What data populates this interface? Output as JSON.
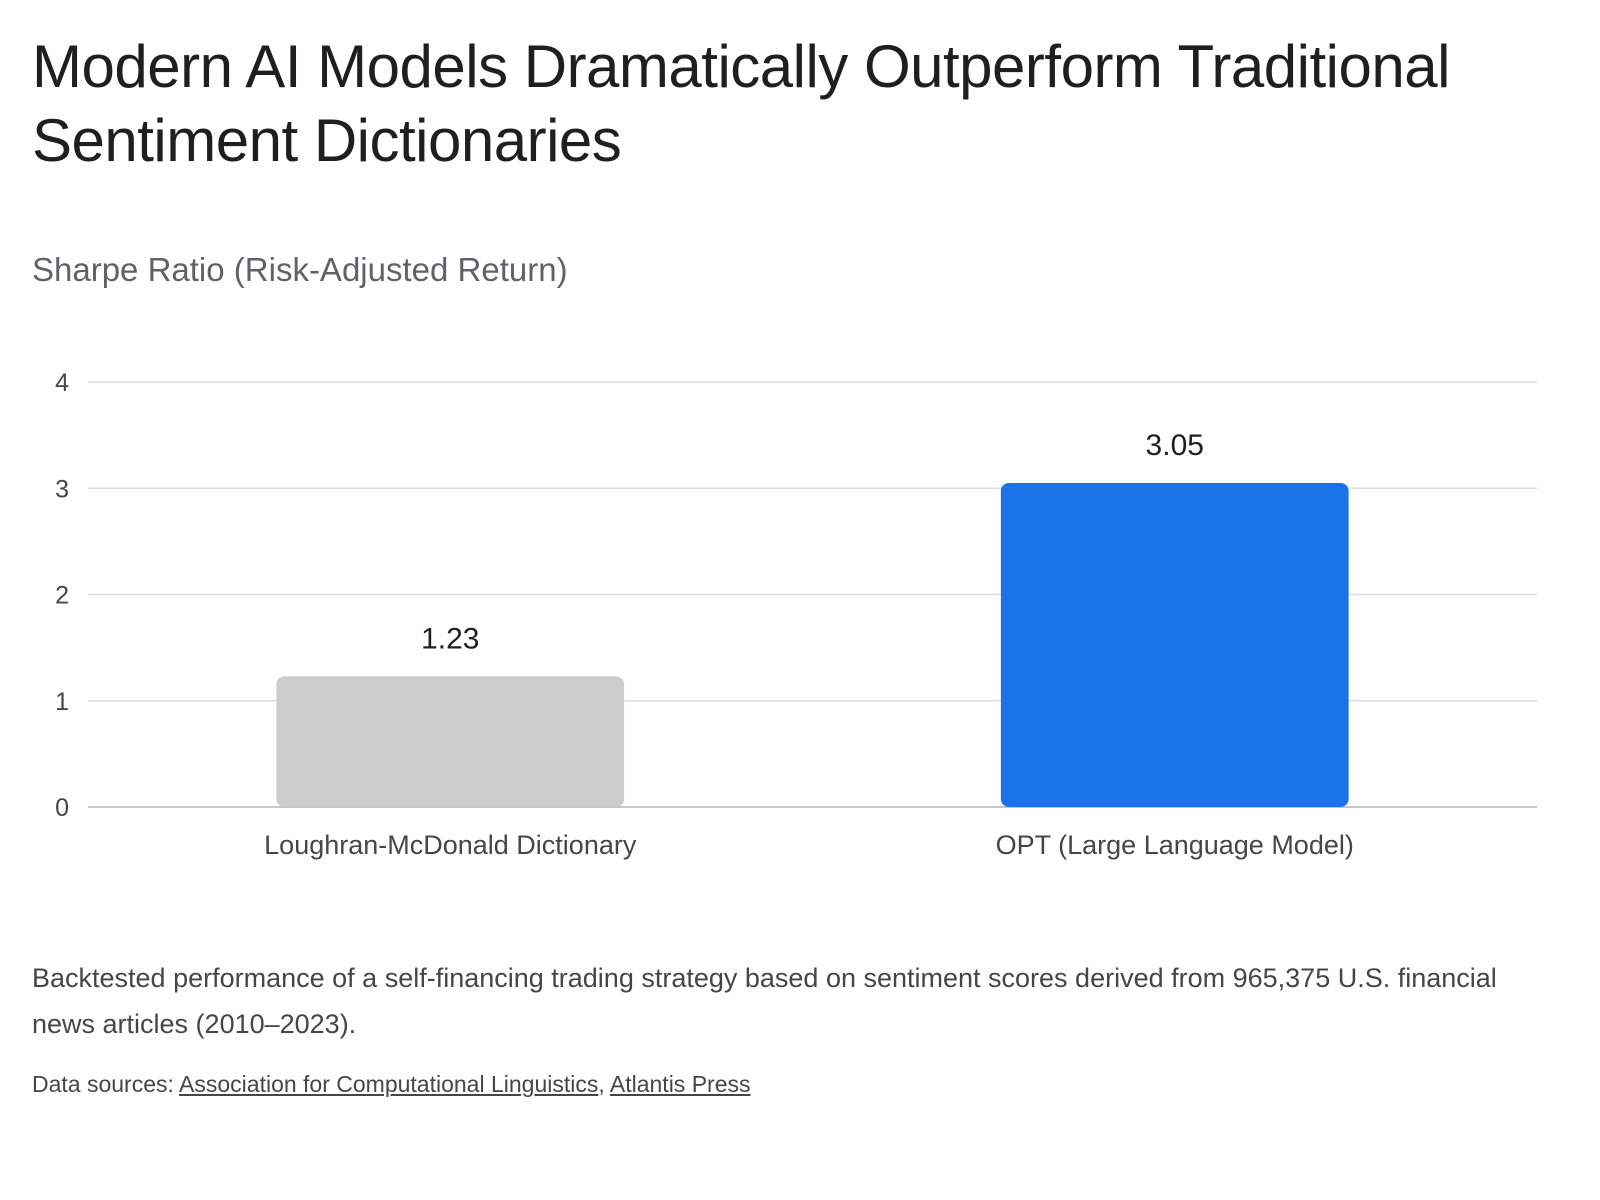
{
  "title": "Modern AI Models Dramatically Outperform Traditional Sentiment Dictionaries",
  "subtitle": "Sharpe Ratio (Risk-Adjusted Return)",
  "caption": "Backtested performance of a self-financing trading strategy based on sentiment scores derived from 965,375 U.S. financial news articles (2010–2023).",
  "sources": {
    "prefix": "Data sources: ",
    "separator": ", ",
    "links": [
      "Association for Computational Linguistics",
      "Atlantis Press"
    ]
  },
  "chart_data": {
    "type": "bar",
    "title": "Modern AI Models Dramatically Outperform Traditional Sentiment Dictionaries",
    "subtitle": "Sharpe Ratio (Risk-Adjusted Return)",
    "xlabel": "",
    "ylabel": "",
    "categories": [
      "Loughran-McDonald Dictionary",
      "OPT (Large Language Model)"
    ],
    "values": [
      1.23,
      3.05
    ],
    "data_labels": [
      "1.23",
      "3.05"
    ],
    "bar_colors": [
      "#cccccc",
      "#1a73e8"
    ],
    "ylim": [
      0,
      4
    ],
    "yticks": [
      0,
      1,
      2,
      3,
      4
    ],
    "grid": true,
    "legend": "none"
  }
}
